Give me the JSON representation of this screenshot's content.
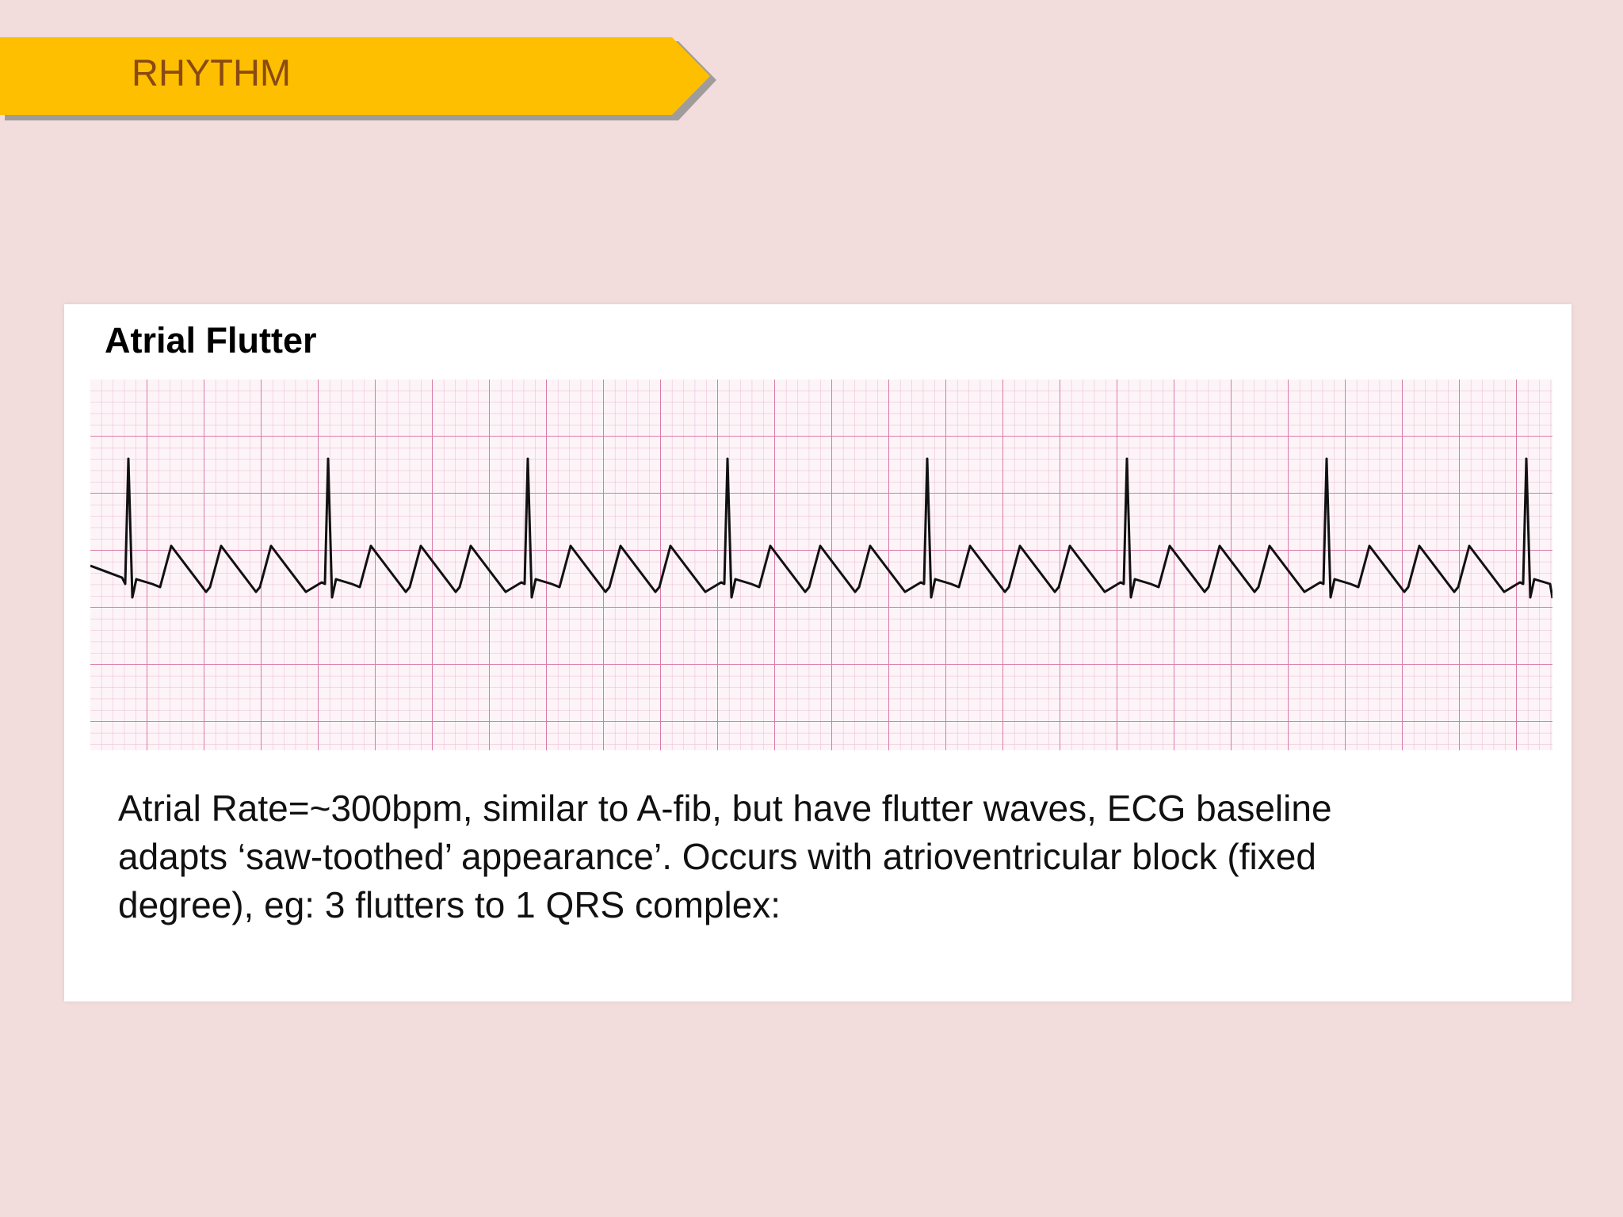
{
  "header": {
    "title": "RHYTHM"
  },
  "card": {
    "title": "Atrial Flutter",
    "description_lines": [
      "Atrial Rate=~300bpm, similar to A-fib, but have flutter waves, ECG baseline",
      "adapts ‘saw-toothed’ appearance’. Occurs with atrioventricular block (fixed",
      "degree), eg: 3 flutters to 1 QRS complex:"
    ]
  }
}
